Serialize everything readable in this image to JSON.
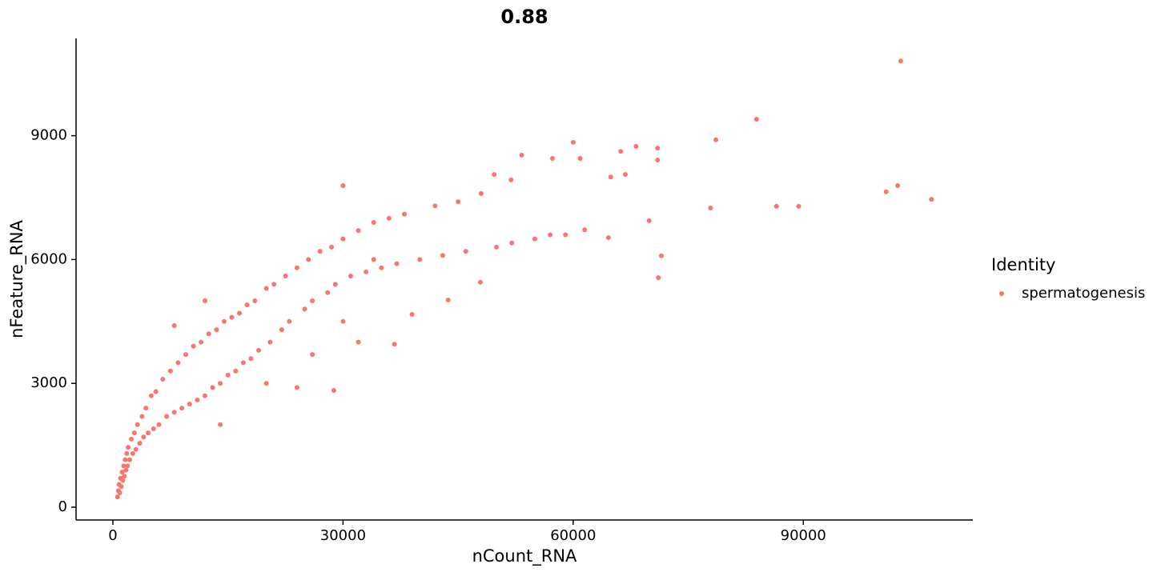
{
  "chart_data": {
    "type": "scatter",
    "title": "0.88",
    "x_label": "nCount_RNA",
    "y_label": "nFeature_RNA",
    "legend_title": "Identity",
    "legend": "right",
    "xlim": [
      -4800,
      112100
    ],
    "ylim": [
      -310,
      11357
    ],
    "xticks": [
      0,
      30000,
      60000,
      90000
    ],
    "yticks": [
      0,
      3000,
      6000,
      9000
    ],
    "grid": false,
    "series": [
      {
        "name": "spermatogenesis",
        "color": "#F8766D",
        "x": [
          600,
          700,
          800,
          900,
          1000,
          1100,
          1200,
          1300,
          1400,
          1500,
          1600,
          1700,
          1800,
          1900,
          2000,
          2200,
          2400,
          2600,
          2800,
          3000,
          3200,
          3500,
          3800,
          4000,
          4300,
          4600,
          5000,
          5300,
          5600,
          6000,
          6500,
          7000,
          7500,
          8000,
          8500,
          9000,
          9500,
          10000,
          10500,
          11000,
          11500,
          12000,
          12500,
          13000,
          13500,
          14000,
          14500,
          15000,
          15500,
          16000,
          16500,
          17000,
          17500,
          18000,
          18500,
          19000,
          20000,
          20500,
          21000,
          22000,
          22500,
          23000,
          24000,
          25000,
          25500,
          26000,
          27000,
          28000,
          28500,
          29000,
          30000,
          31000,
          32000,
          33000,
          34000,
          35000,
          36000,
          37000,
          38000,
          40000,
          42000,
          43000,
          45000,
          46000,
          48000,
          50000,
          52000,
          55000,
          57000,
          59000,
          8000,
          12000,
          14000,
          20000,
          24000,
          26000,
          30000,
          32000,
          34000,
          102700,
          83900,
          78600,
          60000,
          53300,
          71000,
          68200,
          66200,
          100800,
          102300,
          106700,
          86500,
          89400,
          77900,
          71500,
          71100,
          64600,
          69900,
          61500,
          57300,
          60900,
          71000,
          64900,
          66800,
          49700,
          51900,
          47900,
          43700,
          36700,
          39000,
          28800,
          30000
        ],
        "values": [
          250,
          400,
          550,
          350,
          700,
          500,
          850,
          650,
          1000,
          750,
          1150,
          900,
          1300,
          1000,
          1450,
          1150,
          1650,
          1300,
          1800,
          1400,
          2000,
          1550,
          2200,
          1700,
          2400,
          1800,
          2700,
          1900,
          2800,
          2000,
          3100,
          2200,
          3300,
          2300,
          3500,
          2400,
          3700,
          2500,
          3900,
          2600,
          4000,
          2700,
          4200,
          2900,
          4300,
          3000,
          4500,
          3200,
          4600,
          3300,
          4700,
          3500,
          4900,
          3600,
          5000,
          3800,
          5300,
          4000,
          5400,
          4300,
          5600,
          4500,
          5800,
          4800,
          6000,
          5000,
          6200,
          5200,
          6300,
          5400,
          6500,
          5600,
          6700,
          5700,
          6900,
          5800,
          7000,
          5900,
          7100,
          6000,
          7300,
          6100,
          7400,
          6200,
          7600,
          6300,
          6400,
          6500,
          6600,
          6600,
          4400,
          5000,
          2000,
          3000,
          2900,
          3700,
          4500,
          4000,
          6000,
          10810,
          9400,
          8900,
          8840,
          8530,
          8700,
          8740,
          8620,
          7640,
          7790,
          7460,
          7290,
          7290,
          7250,
          6090,
          5560,
          6530,
          6940,
          6720,
          8450,
          8450,
          8410,
          8000,
          8060,
          8060,
          7930,
          5450,
          5020,
          3950,
          4670,
          2830,
          7790
        ]
      }
    ]
  }
}
